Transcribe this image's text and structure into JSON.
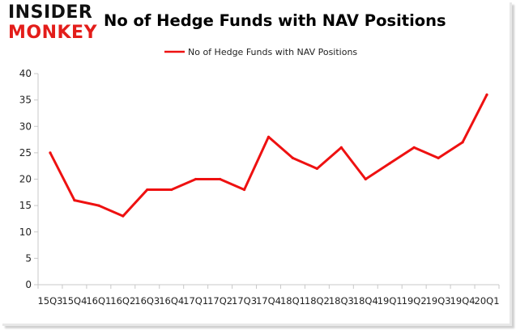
{
  "logo": {
    "line1": "INSIDER",
    "line2": "MONKEY"
  },
  "chart_data": {
    "type": "line",
    "title": "No of Hedge Funds with NAV Positions",
    "xlabel": "",
    "ylabel": "",
    "categories": [
      "15Q3",
      "15Q4",
      "16Q1",
      "16Q2",
      "16Q3",
      "16Q4",
      "17Q1",
      "17Q2",
      "17Q3",
      "17Q4",
      "18Q1",
      "18Q2",
      "18Q3",
      "18Q4",
      "19Q1",
      "19Q2",
      "19Q3",
      "19Q4",
      "20Q1"
    ],
    "series": [
      {
        "name": "No of Hedge Funds with NAV Positions",
        "values": [
          25,
          16,
          15,
          13,
          18,
          18,
          20,
          20,
          18,
          28,
          24,
          22,
          26,
          20,
          23,
          26,
          24,
          27,
          36
        ]
      }
    ],
    "ylim": [
      0,
      40
    ],
    "yticks": [
      0,
      5,
      10,
      15,
      20,
      25,
      30,
      35,
      40
    ],
    "grid": false,
    "legend": "top",
    "colors": {
      "line": "#ee1111",
      "axis": "#c8c8c8"
    }
  }
}
